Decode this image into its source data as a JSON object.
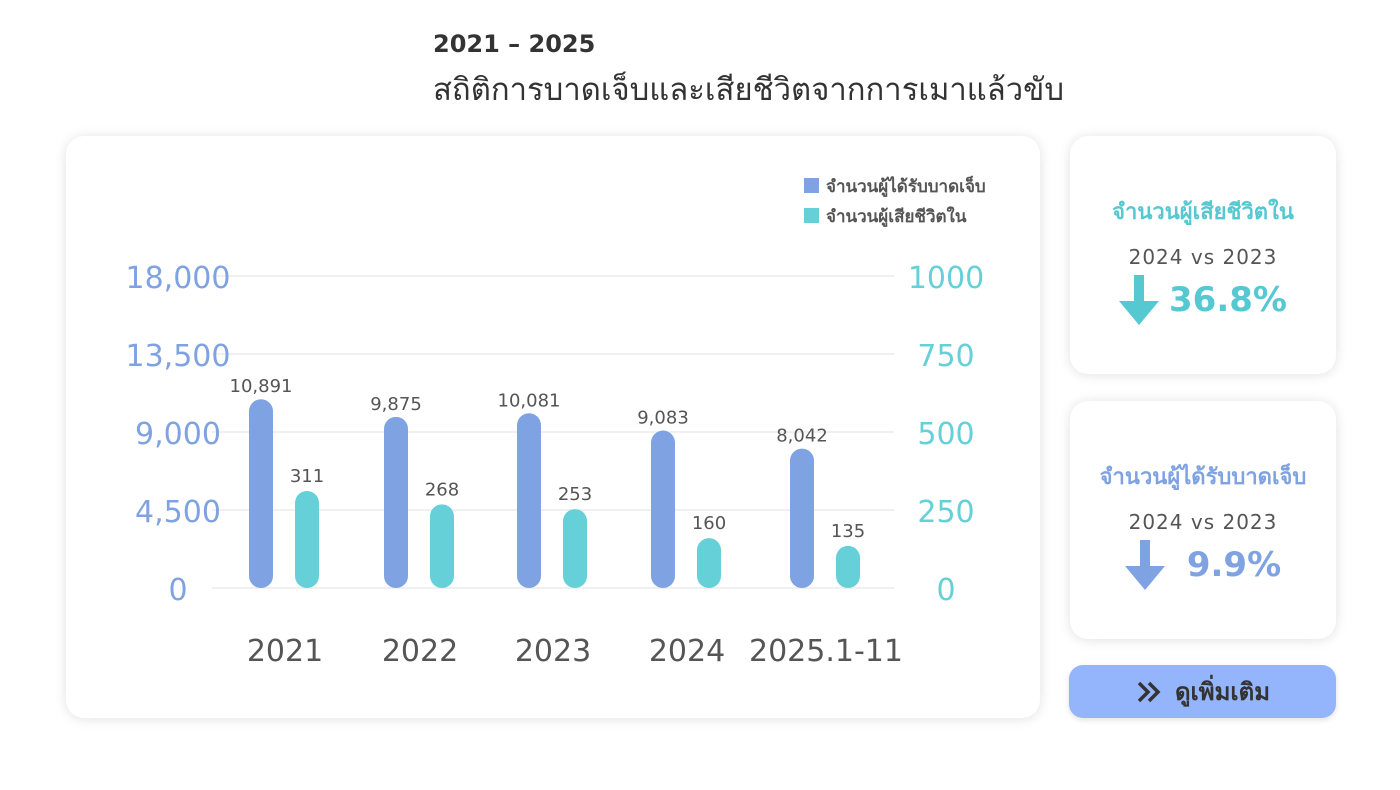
{
  "header": {
    "subtitle": "2021 – 2025",
    "title": "สถิติการบาดเจ็บและเสียชีวิตจากการเมาแล้วขับ"
  },
  "chart_data": {
    "type": "bar",
    "categories": [
      "2021",
      "2022",
      "2023",
      "2024",
      "2025.1-11"
    ],
    "series": [
      {
        "name": "จำนวนผู้ได้รับบาดเจ็บ",
        "axis": "left",
        "color": "#7fa3e2",
        "values": [
          10891,
          9875,
          10081,
          9083,
          8042
        ]
      },
      {
        "name": "จำนวนผู้เสียชีวิตใน",
        "axis": "right",
        "color": "#66d0d8",
        "values": [
          311,
          268,
          253,
          160,
          135
        ]
      }
    ],
    "left_axis": {
      "range": [
        0,
        18000
      ],
      "ticks": [
        "0",
        "4,500",
        "9,000",
        "13,500",
        "18,000"
      ],
      "color": "#7fa3e2"
    },
    "right_axis": {
      "range": [
        0,
        1000
      ],
      "ticks": [
        "0",
        "250",
        "500",
        "750",
        "1000"
      ],
      "color": "#66d0d8"
    },
    "value_labels": {
      "left": [
        "10,891",
        "9,875",
        "10,081",
        "9,083",
        "8,042"
      ],
      "right": [
        "311",
        "268",
        "253",
        "160",
        "135"
      ]
    },
    "grid": true,
    "legend_position": "top-right"
  },
  "stats": [
    {
      "label": "จำนวนผู้เสียชีวิตใน",
      "compare": "2024  vs  2023",
      "change": "36.8%",
      "direction": "down",
      "color": "#55c8d2"
    },
    {
      "label": "จำนวนผู้ได้รับบาดเจ็บ",
      "compare": "2024  vs  2023",
      "change": "9.9%",
      "direction": "down",
      "color": "#7fa3e2"
    }
  ],
  "more_button": {
    "label": "ดูเพิ่มเติม",
    "icon": "double-chevron-right-icon"
  }
}
